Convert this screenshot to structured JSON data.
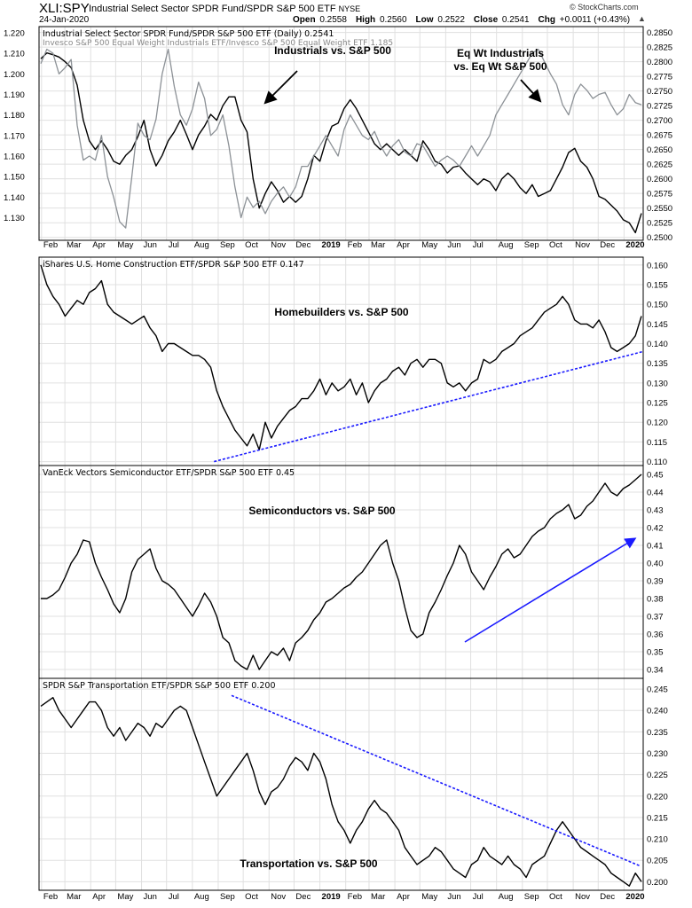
{
  "header": {
    "symbol": "XLI:SPY",
    "name": "Industrial Select Sector SPDR Fund/SPDR S&P 500 ETF",
    "exchange": "NYSE",
    "date": "24-Jan-2020",
    "open_label": "Open",
    "open": "0.2558",
    "high_label": "High",
    "high": "0.2560",
    "low_label": "Low",
    "low": "0.2522",
    "close_label": "Close",
    "close": "0.2541",
    "chg_label": "Chg",
    "chg": "+0.0011 (+0.43%)",
    "brand": "© StockCharts.com",
    "arrow": "▲"
  },
  "x_axis": {
    "labels": [
      "Feb",
      "Mar",
      "Apr",
      "May",
      "Jun",
      "Jul",
      "Aug",
      "Sep",
      "Oct",
      "Nov",
      "Dec",
      "2019",
      "Feb",
      "Mar",
      "Apr",
      "May",
      "Jun",
      "Jul",
      "Aug",
      "Sep",
      "Oct",
      "Nov",
      "Dec",
      "2020"
    ],
    "bold": [
      "2019",
      "2020"
    ],
    "start": "2018-01-29",
    "end": "2020-01-24"
  },
  "colors": {
    "primary": "#000000",
    "secondary": "#8c9196",
    "trend": "#1a1aff",
    "grid": "#e0e0e0",
    "border": "#000000"
  },
  "chart_data": [
    {
      "type": "line",
      "title": "Industrial Select Sector SPDR Fund/SPDR S&P 500 ETF (Daily) 0.2541",
      "title2": "Invesco S&P 500 Equal Weight Industrials ETF/Invesco S&P 500 Equal Weight ETF 1.185",
      "annotations": [
        {
          "text": "Industrials vs. S&P 500"
        },
        {
          "text": "Eq Wt Industrials"
        },
        {
          "text": "vs. Eq Wt S&P 500"
        }
      ],
      "y_right": {
        "ticks": [
          "0.2850",
          "0.2825",
          "0.2800",
          "0.2775",
          "0.2750",
          "0.2725",
          "0.2700",
          "0.2675",
          "0.2650",
          "0.2625",
          "0.2600",
          "0.2575",
          "0.2550",
          "0.2525",
          "0.2500"
        ],
        "ylim": [
          0.2495,
          0.286
        ]
      },
      "y_left": {
        "ticks": [
          "1.220",
          "1.210",
          "1.200",
          "1.190",
          "1.180",
          "1.170",
          "1.160",
          "1.150",
          "1.140",
          "1.130"
        ],
        "ylim": [
          1.119,
          1.223
        ]
      },
      "series": [
        {
          "role": "primary",
          "axis": "right",
          "values": [
            0.2805,
            0.2815,
            0.2812,
            0.2808,
            0.28,
            0.279,
            0.276,
            0.27,
            0.2665,
            0.265,
            0.2665,
            0.265,
            0.263,
            0.2625,
            0.264,
            0.265,
            0.2672,
            0.27,
            0.265,
            0.2622,
            0.264,
            0.2665,
            0.268,
            0.27,
            0.2676,
            0.265,
            0.2675,
            0.269,
            0.271,
            0.27,
            0.2725,
            0.274,
            0.274,
            0.27,
            0.268,
            0.26,
            0.255,
            0.2575,
            0.2595,
            0.258,
            0.256,
            0.257,
            0.256,
            0.257,
            0.26,
            0.264,
            0.263,
            0.2665,
            0.269,
            0.2695,
            0.272,
            0.2735,
            0.272,
            0.27,
            0.268,
            0.266,
            0.265,
            0.266,
            0.265,
            0.264,
            0.265,
            0.264,
            0.263,
            0.2665,
            0.265,
            0.263,
            0.2625,
            0.261,
            0.262,
            0.2622,
            0.261,
            0.26,
            0.259,
            0.26,
            0.2595,
            0.258,
            0.26,
            0.261,
            0.26,
            0.2585,
            0.2575,
            0.259,
            0.257,
            0.2575,
            0.258,
            0.26,
            0.262,
            0.2645,
            0.2652,
            0.263,
            0.262,
            0.26,
            0.257,
            0.2565,
            0.2555,
            0.2545,
            0.253,
            0.2525,
            0.2508,
            0.2541
          ]
        },
        {
          "role": "secondary",
          "axis": "left",
          "values": [
            1.205,
            1.212,
            1.21,
            1.2,
            1.203,
            1.207,
            1.175,
            1.158,
            1.16,
            1.158,
            1.17,
            1.15,
            1.14,
            1.128,
            1.125,
            1.15,
            1.176,
            1.17,
            1.168,
            1.178,
            1.2,
            1.212,
            1.194,
            1.18,
            1.175,
            1.183,
            1.196,
            1.188,
            1.17,
            1.173,
            1.18,
            1.165,
            1.145,
            1.13,
            1.14,
            1.135,
            1.138,
            1.132,
            1.138,
            1.142,
            1.145,
            1.14,
            1.145,
            1.155,
            1.155,
            1.16,
            1.165,
            1.17,
            1.165,
            1.16,
            1.173,
            1.18,
            1.175,
            1.17,
            1.168,
            1.172,
            1.165,
            1.16,
            1.165,
            1.168,
            1.162,
            1.16,
            1.166,
            1.165,
            1.16,
            1.155,
            1.158,
            1.16,
            1.158,
            1.155,
            1.16,
            1.165,
            1.16,
            1.165,
            1.17,
            1.18,
            1.185,
            1.19,
            1.195,
            1.2,
            1.205,
            1.21,
            1.212,
            1.206,
            1.2,
            1.195,
            1.185,
            1.18,
            1.19,
            1.195,
            1.192,
            1.188,
            1.19,
            1.191,
            1.185,
            1.18,
            1.183,
            1.19,
            1.186,
            1.185
          ]
        }
      ]
    },
    {
      "type": "line",
      "title": "iShares U.S. Home Construction ETF/SPDR S&P 500 ETF 0.147",
      "annotations": [
        {
          "text": "Homebuilders vs. S&P 500"
        }
      ],
      "y_right": {
        "ticks": [
          "0.160",
          "0.155",
          "0.150",
          "0.145",
          "0.140",
          "0.135",
          "0.130",
          "0.125",
          "0.120",
          "0.115",
          "0.110"
        ],
        "ylim": [
          0.109,
          0.162
        ]
      },
      "series": [
        {
          "role": "primary",
          "axis": "right",
          "values": [
            0.16,
            0.155,
            0.152,
            0.15,
            0.147,
            0.149,
            0.151,
            0.15,
            0.153,
            0.154,
            0.156,
            0.15,
            0.148,
            0.147,
            0.146,
            0.145,
            0.146,
            0.147,
            0.144,
            0.142,
            0.138,
            0.14,
            0.14,
            0.139,
            0.138,
            0.137,
            0.137,
            0.136,
            0.134,
            0.128,
            0.124,
            0.121,
            0.118,
            0.116,
            0.114,
            0.117,
            0.113,
            0.12,
            0.116,
            0.119,
            0.121,
            0.123,
            0.124,
            0.126,
            0.126,
            0.128,
            0.131,
            0.127,
            0.13,
            0.128,
            0.129,
            0.131,
            0.127,
            0.13,
            0.125,
            0.128,
            0.13,
            0.131,
            0.133,
            0.134,
            0.132,
            0.135,
            0.136,
            0.134,
            0.136,
            0.136,
            0.135,
            0.13,
            0.129,
            0.13,
            0.128,
            0.13,
            0.131,
            0.136,
            0.135,
            0.136,
            0.138,
            0.139,
            0.14,
            0.142,
            0.143,
            0.144,
            0.146,
            0.148,
            0.149,
            0.15,
            0.152,
            0.15,
            0.146,
            0.145,
            0.145,
            0.144,
            0.146,
            0.143,
            0.139,
            0.138,
            0.139,
            0.14,
            0.142,
            0.147
          ]
        },
        {
          "role": "trend",
          "axis": "right",
          "values": [
            0.11,
            0.138
          ],
          "x": [
            "2018-08-27",
            "2020-01-24"
          ]
        }
      ]
    },
    {
      "type": "line",
      "title": "VanEck Vectors Semiconductor ETF/SPDR S&P 500 ETF 0.45",
      "annotations": [
        {
          "text": "Semiconductors vs. S&P 500"
        }
      ],
      "y_right": {
        "ticks": [
          "0.45",
          "0.44",
          "0.43",
          "0.42",
          "0.41",
          "0.40",
          "0.39",
          "0.38",
          "0.37",
          "0.36",
          "0.35",
          "0.34"
        ],
        "ylim": [
          0.335,
          0.455
        ]
      },
      "series": [
        {
          "role": "primary",
          "axis": "right",
          "values": [
            0.38,
            0.38,
            0.382,
            0.385,
            0.392,
            0.4,
            0.405,
            0.413,
            0.412,
            0.4,
            0.392,
            0.385,
            0.377,
            0.372,
            0.38,
            0.395,
            0.402,
            0.405,
            0.408,
            0.397,
            0.39,
            0.388,
            0.385,
            0.38,
            0.375,
            0.37,
            0.376,
            0.383,
            0.378,
            0.37,
            0.358,
            0.355,
            0.345,
            0.342,
            0.34,
            0.348,
            0.34,
            0.345,
            0.35,
            0.348,
            0.352,
            0.345,
            0.355,
            0.358,
            0.362,
            0.368,
            0.372,
            0.378,
            0.38,
            0.383,
            0.386,
            0.388,
            0.392,
            0.395,
            0.4,
            0.405,
            0.41,
            0.413,
            0.4,
            0.39,
            0.375,
            0.362,
            0.358,
            0.36,
            0.372,
            0.378,
            0.385,
            0.393,
            0.4,
            0.41,
            0.405,
            0.395,
            0.39,
            0.385,
            0.392,
            0.398,
            0.405,
            0.408,
            0.403,
            0.405,
            0.41,
            0.415,
            0.418,
            0.42,
            0.425,
            0.428,
            0.43,
            0.433,
            0.425,
            0.427,
            0.432,
            0.435,
            0.44,
            0.445,
            0.44,
            0.438,
            0.442,
            0.444,
            0.447,
            0.45
          ]
        },
        {
          "role": "trend-arrow",
          "axis": "right",
          "values": [
            0.3555,
            0.4135
          ],
          "x": [
            "2019-06-24",
            "2020-01-13"
          ]
        }
      ]
    },
    {
      "type": "line",
      "title": "SPDR S&P Transportation ETF/SPDR S&P 500 ETF 0.200",
      "annotations": [
        {
          "text": "Transportation vs. S&P 500"
        }
      ],
      "y_right": {
        "ticks": [
          "0.245",
          "0.240",
          "0.235",
          "0.230",
          "0.225",
          "0.220",
          "0.215",
          "0.210",
          "0.205",
          "0.200"
        ],
        "ylim": [
          0.198,
          0.2475
        ]
      },
      "series": [
        {
          "role": "primary",
          "axis": "right",
          "values": [
            0.241,
            0.242,
            0.243,
            0.24,
            0.238,
            0.236,
            0.238,
            0.24,
            0.242,
            0.242,
            0.24,
            0.236,
            0.234,
            0.236,
            0.233,
            0.235,
            0.237,
            0.236,
            0.234,
            0.237,
            0.236,
            0.238,
            0.24,
            0.241,
            0.24,
            0.236,
            0.232,
            0.228,
            0.224,
            0.22,
            0.222,
            0.224,
            0.226,
            0.228,
            0.23,
            0.226,
            0.221,
            0.218,
            0.221,
            0.222,
            0.224,
            0.227,
            0.229,
            0.228,
            0.226,
            0.23,
            0.228,
            0.224,
            0.218,
            0.214,
            0.212,
            0.209,
            0.212,
            0.214,
            0.217,
            0.219,
            0.217,
            0.216,
            0.214,
            0.212,
            0.208,
            0.206,
            0.204,
            0.205,
            0.206,
            0.208,
            0.207,
            0.205,
            0.203,
            0.202,
            0.201,
            0.204,
            0.205,
            0.208,
            0.206,
            0.205,
            0.204,
            0.206,
            0.204,
            0.203,
            0.201,
            0.204,
            0.205,
            0.206,
            0.209,
            0.212,
            0.214,
            0.212,
            0.21,
            0.208,
            0.207,
            0.206,
            0.205,
            0.204,
            0.202,
            0.201,
            0.2,
            0.199,
            0.202,
            0.2
          ]
        },
        {
          "role": "trend",
          "axis": "right",
          "values": [
            0.2435,
            0.2037
          ],
          "x": [
            "2018-09-17",
            "2020-01-20"
          ]
        }
      ]
    }
  ]
}
